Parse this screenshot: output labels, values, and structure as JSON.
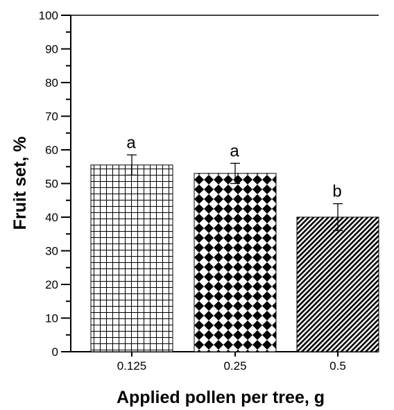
{
  "chart_data": {
    "type": "bar",
    "categories": [
      "0.125",
      "0.25",
      "0.5"
    ],
    "values": [
      55.5,
      53,
      40
    ],
    "errors": [
      3,
      3,
      4
    ],
    "significance_labels": [
      "a",
      "a",
      "b"
    ],
    "bar_patterns": [
      "grid",
      "diamond-checker",
      "diagonal-hatch"
    ],
    "xlabel": "Applied pollen per tree, g",
    "ylabel": "Fruit set, %",
    "ylim": [
      0,
      100
    ],
    "yticks": [
      0,
      10,
      20,
      30,
      40,
      50,
      60,
      70,
      80,
      90,
      100
    ],
    "grid": false,
    "legend": "none",
    "colors": {
      "axis": "#000000",
      "background": "#ffffff",
      "bar_fill": "#000000"
    }
  }
}
